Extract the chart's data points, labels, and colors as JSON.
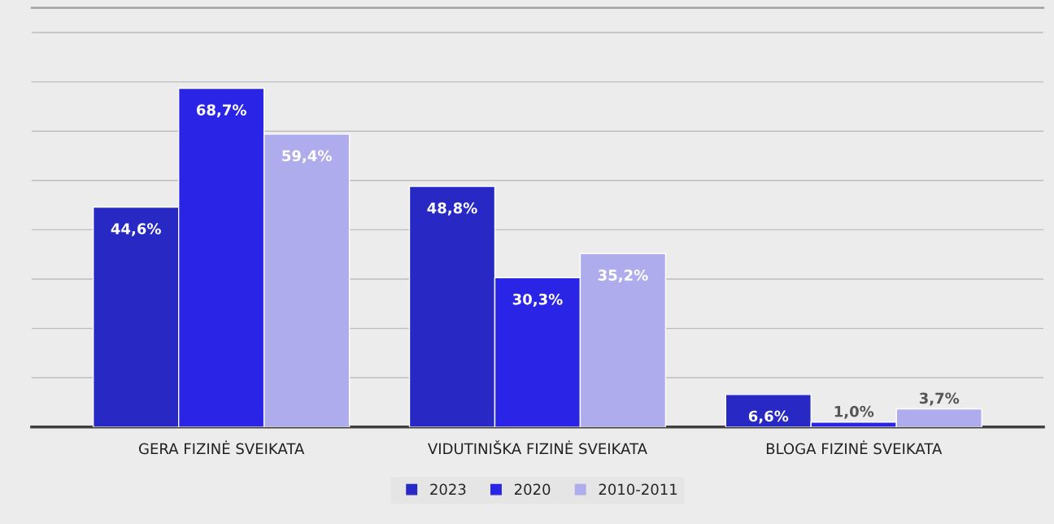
{
  "chart_data": {
    "type": "bar",
    "categories": [
      "GERA FIZINĖ SVEIKATA",
      "VIDUTINIŠKA FIZINĖ SVEIKATA",
      "BLOGA FIZINĖ SVEIKATA"
    ],
    "series": [
      {
        "name": "2023",
        "color": "#2828c4",
        "values": [
          44.6,
          48.8,
          6.6
        ],
        "value_labels": [
          "44,6%",
          "48,8%",
          "6,6%"
        ]
      },
      {
        "name": "2020",
        "color": "#2a24e6",
        "values": [
          68.7,
          30.3,
          1.0
        ],
        "value_labels": [
          "68,7%",
          "30,3%",
          "1,0%"
        ]
      },
      {
        "name": "2010-2011",
        "color": "#afacee",
        "values": [
          59.4,
          35.2,
          3.7
        ],
        "value_labels": [
          "59,4%",
          "35,2%",
          "3,7%"
        ]
      }
    ],
    "ylim": [
      0,
      85
    ],
    "yticks": [
      {
        "value": 0,
        "label": null
      },
      {
        "value": 10,
        "label": null
      },
      {
        "value": 20,
        "label": null
      },
      {
        "value": 30,
        "label": null
      },
      {
        "value": 40,
        "label": null
      },
      {
        "value": 50,
        "label": null
      },
      {
        "value": 60,
        "label": null
      },
      {
        "value": 70,
        "label": null
      },
      {
        "value": 80,
        "label": null
      }
    ],
    "tick_labels": "x",
    "grid": "y",
    "legend": "bottom"
  }
}
